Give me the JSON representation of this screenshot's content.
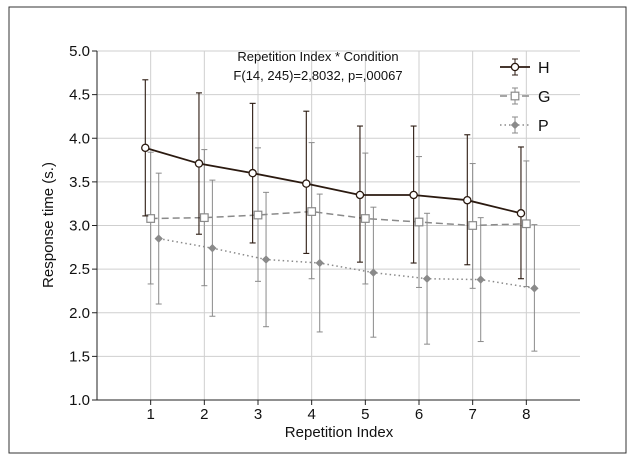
{
  "chart_data": {
    "type": "line",
    "xlabel": "Repetition Index",
    "ylabel": "Response time (s.)",
    "x": [
      1,
      2,
      3,
      4,
      5,
      6,
      7,
      8
    ],
    "xlim": [
      0,
      9
    ],
    "ylim": [
      1.0,
      5.0
    ],
    "yticks": [
      "1.0",
      "1.5",
      "2.0",
      "2.5",
      "3.0",
      "3.5",
      "4.0",
      "4.5",
      "5.0"
    ],
    "xticks": [
      "1",
      "2",
      "3",
      "4",
      "5",
      "6",
      "7",
      "8"
    ],
    "grid": true,
    "legend_position": "top-right",
    "annotation": {
      "line1": "Repetition Index * Condition",
      "line2": "F(14, 245)=2,8032, p=,00067"
    },
    "series": [
      {
        "name": "H",
        "color": "#2b1a10",
        "line_style": "solid",
        "marker": "circle-open",
        "x_offset": -0.1,
        "values": [
          3.89,
          3.71,
          3.6,
          3.48,
          3.35,
          3.35,
          3.29,
          3.14
        ],
        "err_upper": [
          4.67,
          4.52,
          4.4,
          4.31,
          4.14,
          4.14,
          4.04,
          3.9
        ],
        "err_lower": [
          3.11,
          2.9,
          2.8,
          2.68,
          2.58,
          2.57,
          2.55,
          2.39
        ]
      },
      {
        "name": "G",
        "color": "#8a8a8a",
        "line_style": "dashed",
        "marker": "square-open",
        "x_offset": 0.0,
        "values": [
          3.08,
          3.09,
          3.12,
          3.16,
          3.08,
          3.04,
          3.0,
          3.02
        ],
        "err_upper": [
          3.84,
          3.87,
          3.89,
          3.95,
          3.83,
          3.79,
          3.71,
          3.74
        ],
        "err_lower": [
          2.33,
          2.31,
          2.36,
          2.39,
          2.33,
          2.29,
          2.28,
          2.3
        ]
      },
      {
        "name": "P",
        "color": "#8a8a8a",
        "line_style": "dotted",
        "marker": "diamond-filled",
        "x_offset": 0.15,
        "values": [
          2.85,
          2.74,
          2.61,
          2.57,
          2.46,
          2.39,
          2.38,
          2.28
        ],
        "err_upper": [
          3.6,
          3.52,
          3.38,
          3.36,
          3.21,
          3.14,
          3.09,
          3.01
        ],
        "err_lower": [
          2.1,
          1.96,
          1.84,
          1.78,
          1.72,
          1.64,
          1.67,
          1.56
        ]
      }
    ]
  }
}
